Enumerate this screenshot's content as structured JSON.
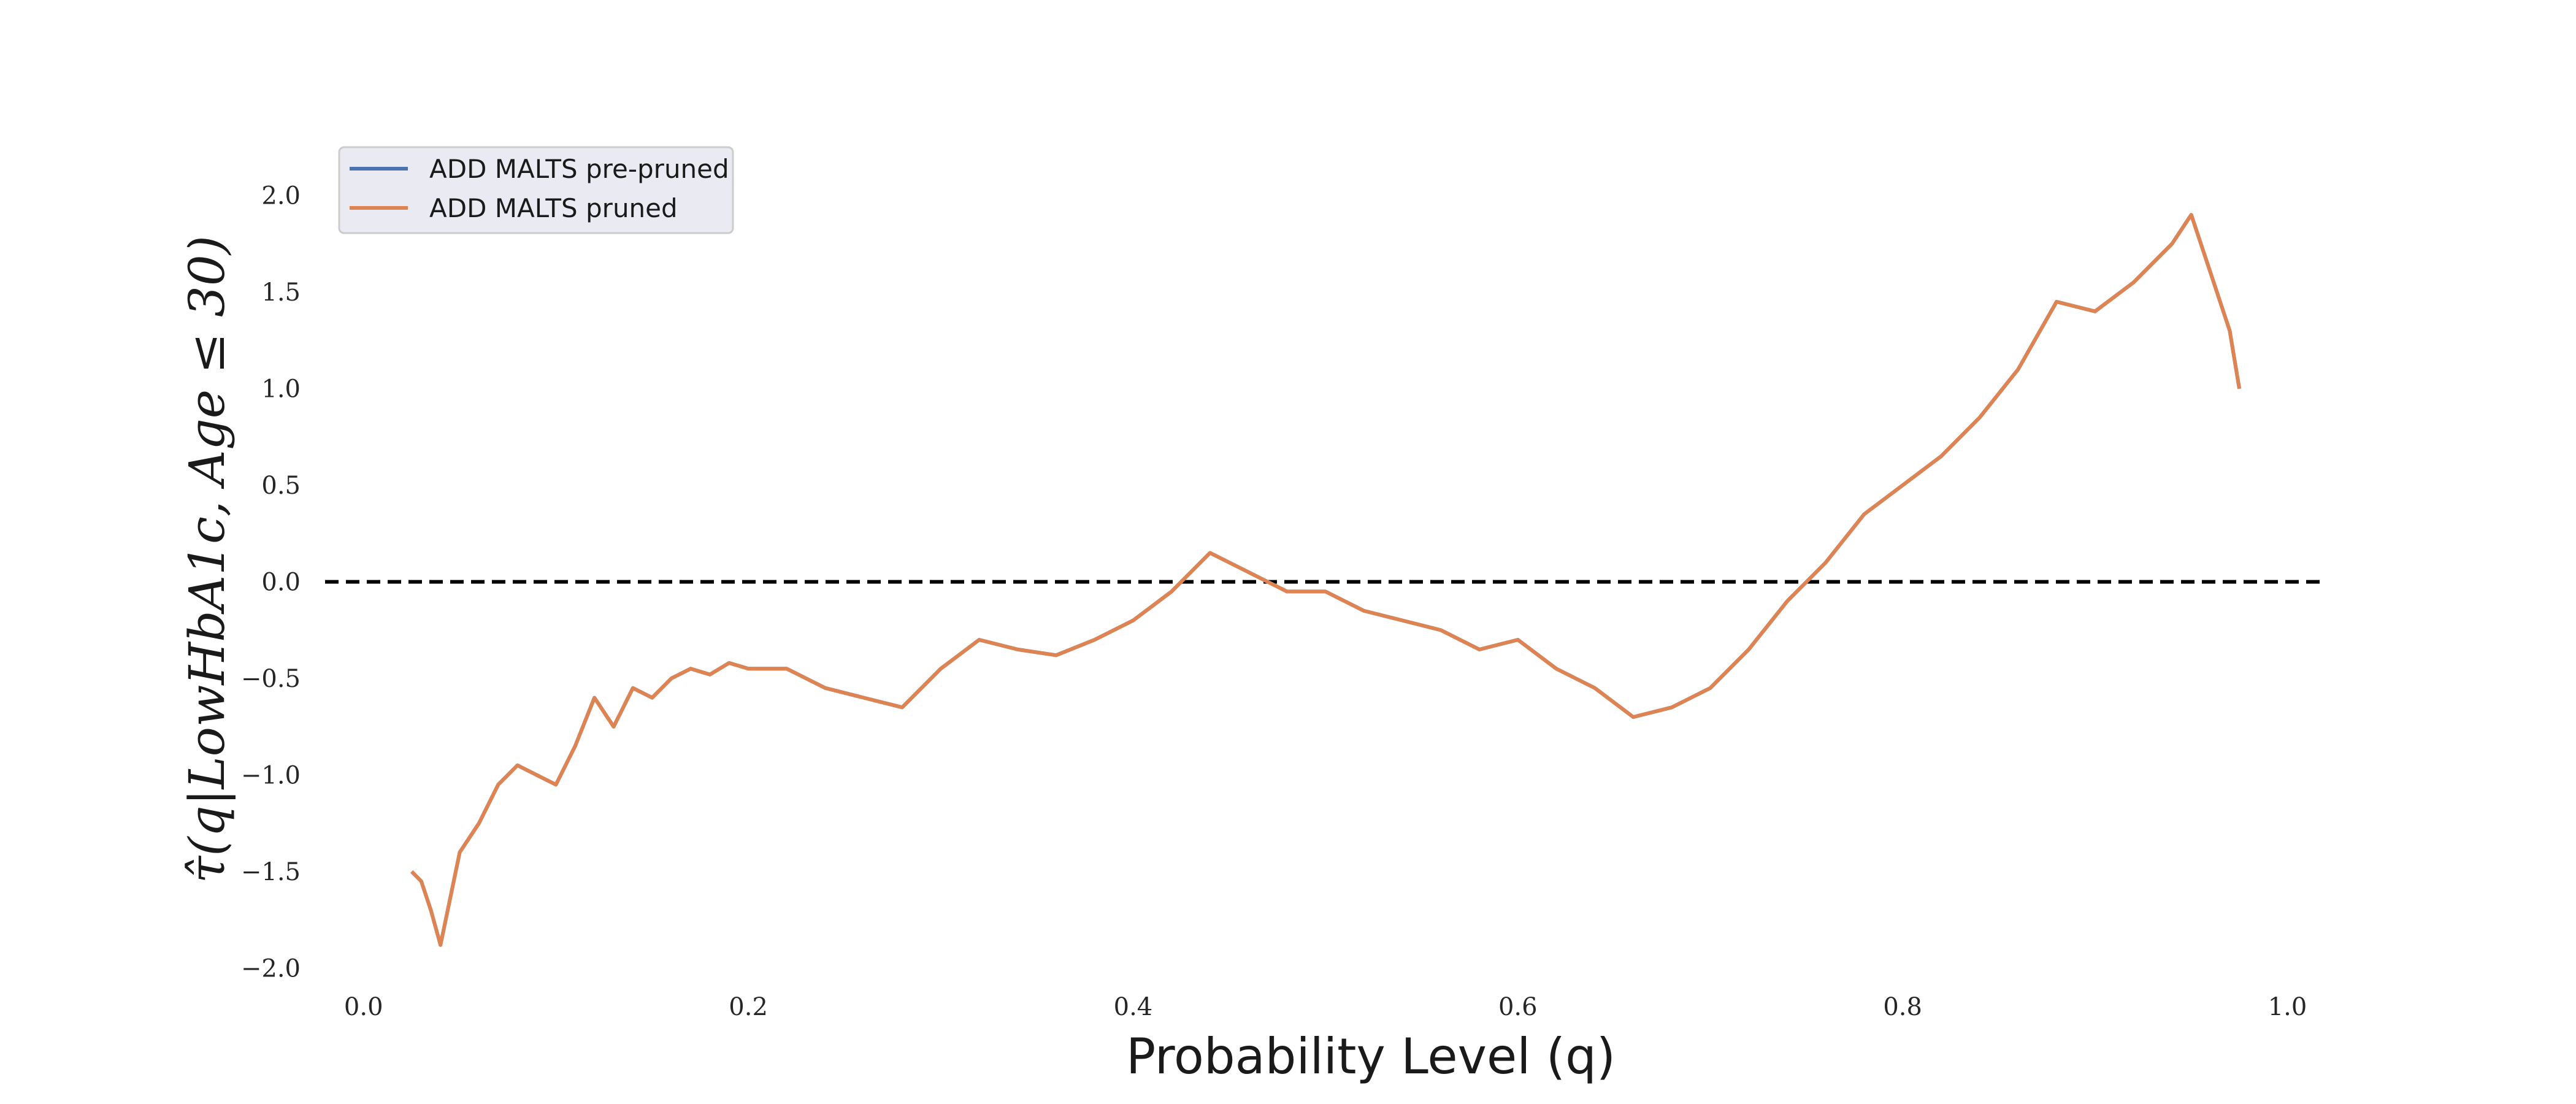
{
  "chart_data": {
    "type": "line",
    "xlabel": "Probability Level (q)",
    "ylabel": "τ̂(q|LowHbA1c, Age ≤ 30)",
    "xlim": [
      -0.02,
      1.04
    ],
    "ylim": [
      -2.1,
      2.25
    ],
    "xticks": [
      0.0,
      0.2,
      0.4,
      0.6,
      0.8,
      1.0
    ],
    "xtick_labels": [
      "0.0",
      "0.2",
      "0.4",
      "0.6",
      "0.8",
      "1.0"
    ],
    "yticks": [
      -2.0,
      -1.5,
      -1.0,
      -0.5,
      0.0,
      0.5,
      1.0,
      1.5,
      2.0
    ],
    "ytick_labels": [
      "−2.0",
      "−1.5",
      "−1.0",
      "−0.5",
      "0.0",
      "0.5",
      "1.0",
      "1.5",
      "2.0"
    ],
    "grid": false,
    "legend_position": "top-left",
    "reference_line": {
      "y": 0.0,
      "x_range": [
        -0.02,
        1.02
      ],
      "style": "dashed",
      "color": "#000000"
    },
    "series": [
      {
        "name": "ADD MALTS pre-pruned",
        "color": "#4C72B0",
        "x": [
          0.025,
          0.03,
          0.035,
          0.04,
          0.05,
          0.06,
          0.07,
          0.08,
          0.09,
          0.1,
          0.11,
          0.12,
          0.13,
          0.14,
          0.15,
          0.16,
          0.17,
          0.18,
          0.19,
          0.2,
          0.22,
          0.24,
          0.26,
          0.28,
          0.3,
          0.32,
          0.34,
          0.36,
          0.38,
          0.4,
          0.42,
          0.44,
          0.46,
          0.48,
          0.5,
          0.52,
          0.54,
          0.56,
          0.58,
          0.6,
          0.62,
          0.64,
          0.66,
          0.68,
          0.7,
          0.72,
          0.74,
          0.76,
          0.78,
          0.8,
          0.82,
          0.84,
          0.86,
          0.88,
          0.9,
          0.92,
          0.94,
          0.95,
          0.96,
          0.97,
          0.975
        ],
        "values": [
          -1.5,
          -1.55,
          -1.7,
          -1.88,
          -1.4,
          -1.25,
          -1.05,
          -0.95,
          -1.0,
          -1.05,
          -0.85,
          -0.6,
          -0.75,
          -0.55,
          -0.6,
          -0.5,
          -0.45,
          -0.48,
          -0.42,
          -0.45,
          -0.45,
          -0.55,
          -0.6,
          -0.65,
          -0.45,
          -0.3,
          -0.35,
          -0.38,
          -0.3,
          -0.2,
          -0.05,
          0.15,
          0.05,
          -0.05,
          -0.05,
          -0.15,
          -0.2,
          -0.25,
          -0.35,
          -0.3,
          -0.45,
          -0.55,
          -0.7,
          -0.65,
          -0.55,
          -0.35,
          -0.1,
          0.1,
          0.35,
          0.5,
          0.65,
          0.85,
          1.1,
          1.45,
          1.4,
          1.55,
          1.75,
          1.9,
          1.6,
          1.3,
          1.0
        ]
      },
      {
        "name": "ADD MALTS pruned",
        "color": "#DD8452",
        "x": [
          0.025,
          0.03,
          0.035,
          0.04,
          0.05,
          0.06,
          0.07,
          0.08,
          0.09,
          0.1,
          0.11,
          0.12,
          0.13,
          0.14,
          0.15,
          0.16,
          0.17,
          0.18,
          0.19,
          0.2,
          0.22,
          0.24,
          0.26,
          0.28,
          0.3,
          0.32,
          0.34,
          0.36,
          0.38,
          0.4,
          0.42,
          0.44,
          0.46,
          0.48,
          0.5,
          0.52,
          0.54,
          0.56,
          0.58,
          0.6,
          0.62,
          0.64,
          0.66,
          0.68,
          0.7,
          0.72,
          0.74,
          0.76,
          0.78,
          0.8,
          0.82,
          0.84,
          0.86,
          0.88,
          0.9,
          0.92,
          0.94,
          0.95,
          0.96,
          0.97,
          0.975
        ],
        "values": [
          -1.5,
          -1.55,
          -1.7,
          -1.88,
          -1.4,
          -1.25,
          -1.05,
          -0.95,
          -1.0,
          -1.05,
          -0.85,
          -0.6,
          -0.75,
          -0.55,
          -0.6,
          -0.5,
          -0.45,
          -0.48,
          -0.42,
          -0.45,
          -0.45,
          -0.55,
          -0.6,
          -0.65,
          -0.45,
          -0.3,
          -0.35,
          -0.38,
          -0.3,
          -0.2,
          -0.05,
          0.15,
          0.05,
          -0.05,
          -0.05,
          -0.15,
          -0.2,
          -0.25,
          -0.35,
          -0.3,
          -0.45,
          -0.55,
          -0.7,
          -0.65,
          -0.55,
          -0.35,
          -0.1,
          0.1,
          0.35,
          0.5,
          0.65,
          0.85,
          1.1,
          1.45,
          1.4,
          1.55,
          1.75,
          1.9,
          1.6,
          1.3,
          1.0
        ]
      }
    ]
  }
}
